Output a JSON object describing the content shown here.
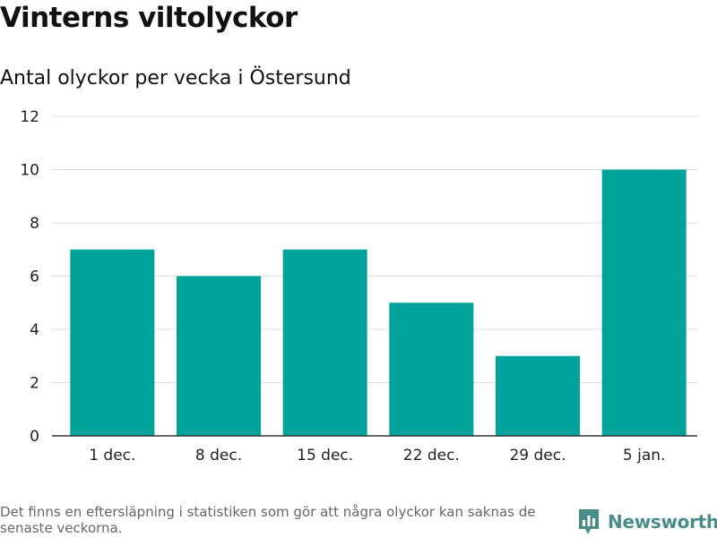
{
  "header": {
    "title": "Vinterns viltolyckor",
    "subtitle": "Antal olyckor per vecka i Östersund"
  },
  "footer": {
    "note": "Det finns en eftersläpning i statistiken som gör att några olyckor kan saknas de senaste veckorna.",
    "brand": "Newsworthy",
    "brand_icon": "bar-chart-logo-icon"
  },
  "colors": {
    "bar": "#00a39a",
    "brand": "#4a8c8a",
    "grid": "#dddddd",
    "axis": "#333333"
  },
  "chart_data": {
    "type": "bar",
    "categories": [
      "1 dec.",
      "8 dec.",
      "15 dec.",
      "22 dec.",
      "29 dec.",
      "5 jan."
    ],
    "values": [
      7,
      6,
      7,
      5,
      3,
      10
    ],
    "yticks": [
      0,
      2,
      4,
      6,
      8,
      10,
      12
    ],
    "ylim": [
      0,
      12
    ],
    "title": "Vinterns viltolyckor",
    "subtitle": "Antal olyckor per vecka i Östersund",
    "xlabel": "",
    "ylabel": "",
    "grid": true,
    "legend": "none"
  }
}
